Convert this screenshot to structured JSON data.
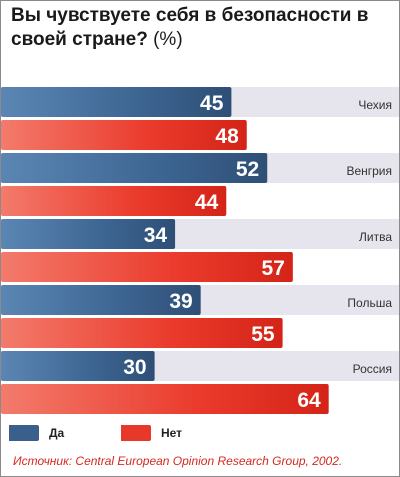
{
  "title_text": "Вы чувствуете себя в безопасности в своей стране?",
  "title_unit": "(%)",
  "legend": {
    "yes": "Да",
    "no": "Нет"
  },
  "source": "Источник: Central European Opinion Research Group, 2002.",
  "colors": {
    "yes": "#3a5f8c",
    "no": "#e8382a",
    "band": "#e6e4ec",
    "label": "#333333"
  },
  "chart_data": {
    "type": "bar",
    "orientation": "horizontal",
    "title": "Вы чувствуете себя в безопасности в своей стране? (%)",
    "categories": [
      "Чехия",
      "Венгрия",
      "Литва",
      "Польша",
      "Россия"
    ],
    "series": [
      {
        "name": "Да",
        "values": [
          45,
          52,
          34,
          39,
          30
        ]
      },
      {
        "name": "Нет",
        "values": [
          48,
          44,
          57,
          55,
          64
        ]
      }
    ],
    "xlim": [
      0,
      100
    ],
    "grid": false,
    "legend_position": "bottom-left"
  }
}
